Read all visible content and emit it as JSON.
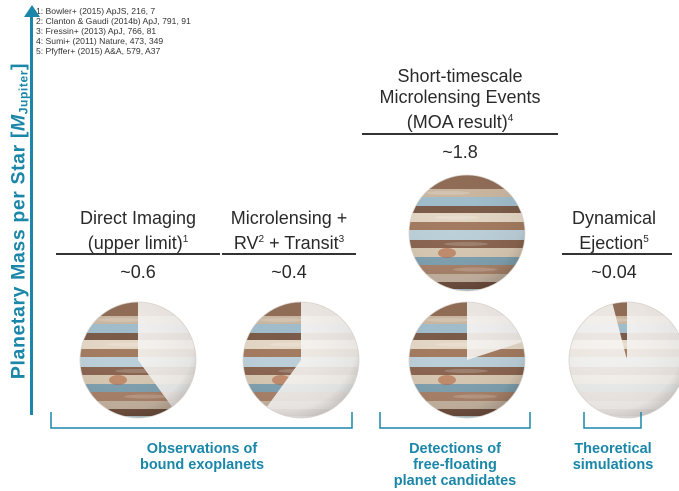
{
  "y_axis": {
    "prefix": "Planetary Mass per Star [",
    "symbol": "M",
    "subscript": "Jupiter",
    "suffix": "]"
  },
  "references": [
    "1: Bowler+ (2015) ApJS, 216, 7",
    "2: Clanton & Gaudi (2014b) ApJ, 791, 91",
    "3: Fressin+ (2013) ApJ, 766, 81",
    "4: Sumi+ (2011) Nature, 473, 349",
    "5: Pfyffer+ (2015) A&A, 579, A37"
  ],
  "columns": [
    {
      "title_line1": "Direct Imaging",
      "title_line2": "(upper limit)",
      "title_sup": "1",
      "value_label": "~0.6",
      "fraction": 0.6
    },
    {
      "title_line1": "Microlensing +",
      "title_line2a": "RV",
      "sup2": "2",
      "title_line2b": " + Transit",
      "sup3": "3",
      "value_label": "~0.4",
      "fraction": 0.4
    },
    {
      "title_line1": "Short-timescale",
      "title_line2": "Microlensing Events",
      "title_line3": "(MOA result)",
      "title_sup": "4",
      "value_label": "~1.8",
      "fraction": 1.8
    },
    {
      "title_line1": "Dynamical",
      "title_line2": "Ejection",
      "title_sup": "5",
      "value_label": "~0.04",
      "fraction": 0.04
    }
  ],
  "groups": [
    {
      "line1": "Observations of",
      "line2": "bound exoplanets"
    },
    {
      "line1": "Detections of",
      "line2": "free-floating",
      "line3": "planet candidates"
    },
    {
      "line1": "Theoretical",
      "line2": "simulations"
    }
  ],
  "colors": {
    "accent": "#1a86a8",
    "text": "#2a2a2a"
  }
}
